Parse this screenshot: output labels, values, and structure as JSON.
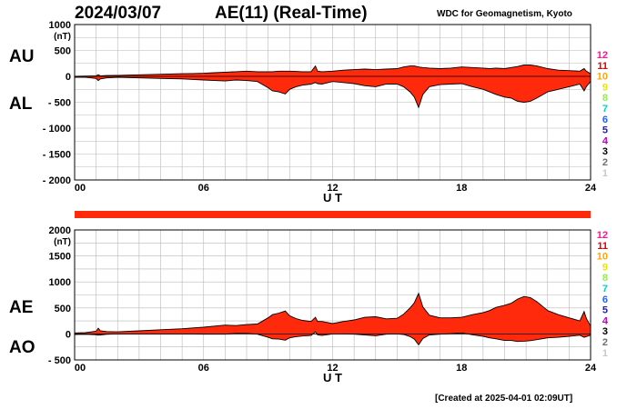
{
  "header": {
    "date": "2024/03/07",
    "title": "AE(11) (Real-Time)",
    "source": "WDC for Geomagnetism, Kyoto"
  },
  "footer": {
    "created": "[Created at 2025-04-01 02:09UT]"
  },
  "colors": {
    "fill": "#ff2a0c",
    "grid": "#b8b8b8",
    "station_scale": [
      "#ff1493",
      "#e00000",
      "#ffa500",
      "#e6e600",
      "#90ee4a",
      "#00d0d0",
      "#1e60ff",
      "#2020b0",
      "#c000c0",
      "#000000",
      "#707070",
      "#c8c8c8"
    ]
  },
  "station_scale": [
    "12",
    "11",
    "10",
    "9",
    "8",
    "7",
    "6",
    "5",
    "4",
    "3",
    "2",
    "1"
  ],
  "chart_data": [
    {
      "type": "area",
      "series": [
        {
          "name": "AU"
        },
        {
          "name": "AL"
        }
      ],
      "xlabel": "U T",
      "ylabel": "(nT)",
      "xlim": [
        0,
        24
      ],
      "ylim": [
        -2000,
        1000
      ],
      "x_ticks": [
        0,
        6,
        12,
        18,
        24
      ],
      "x_tick_labels": [
        "00",
        "06",
        "12",
        "18",
        "24"
      ],
      "y_ticks": [
        1000,
        500,
        0,
        -500,
        -1000,
        -1500,
        -2000
      ],
      "y_tick_labels": [
        "1000",
        "500",
        "0",
        "- 500",
        "- 1000",
        "- 1500",
        "- 2000"
      ],
      "grid": true,
      "x": [
        0,
        0.5,
        1,
        1.1,
        1.2,
        1.5,
        2,
        3,
        4,
        5,
        5.5,
        6,
        6.5,
        7,
        7.5,
        8,
        8.5,
        9,
        9.2,
        9.5,
        9.8,
        10,
        10.3,
        10.6,
        11,
        11.2,
        11.3,
        11.5,
        12,
        12.5,
        13,
        13.5,
        14,
        14.5,
        15,
        15.3,
        15.6,
        15.8,
        16,
        16.2,
        16.5,
        17,
        17.5,
        18,
        18.5,
        19,
        19.3,
        19.6,
        20,
        20.3,
        20.6,
        20.9,
        21.2,
        21.5,
        21.8,
        22,
        22.5,
        23,
        23.5,
        23.7,
        23.8,
        24
      ],
      "au": [
        0,
        5,
        10,
        30,
        10,
        15,
        20,
        30,
        40,
        50,
        55,
        60,
        70,
        80,
        90,
        100,
        90,
        90,
        90,
        100,
        100,
        100,
        95,
        90,
        90,
        200,
        100,
        90,
        100,
        120,
        130,
        140,
        130,
        140,
        150,
        180,
        200,
        200,
        180,
        170,
        160,
        150,
        160,
        180,
        170,
        160,
        150,
        160,
        150,
        170,
        190,
        220,
        220,
        200,
        170,
        150,
        120,
        110,
        100,
        150,
        100,
        50
      ],
      "al": [
        -20,
        -20,
        -40,
        -80,
        -50,
        -30,
        -20,
        -30,
        -40,
        -50,
        -60,
        -70,
        -80,
        -90,
        -70,
        -80,
        -100,
        -220,
        -280,
        -300,
        -340,
        -250,
        -200,
        -170,
        -150,
        -120,
        -140,
        -150,
        -100,
        -120,
        -140,
        -180,
        -200,
        -150,
        -150,
        -200,
        -300,
        -400,
        -600,
        -350,
        -200,
        -160,
        -150,
        -140,
        -200,
        -250,
        -300,
        -350,
        -400,
        -420,
        -480,
        -500,
        -480,
        -420,
        -350,
        -300,
        -250,
        -200,
        -150,
        -280,
        -200,
        -100
      ]
    },
    {
      "type": "area",
      "series": [
        {
          "name": "AE"
        },
        {
          "name": "AO"
        }
      ],
      "xlabel": "U T",
      "ylabel": "(nT)",
      "xlim": [
        0,
        24
      ],
      "ylim": [
        -500,
        2000
      ],
      "x_ticks": [
        0,
        6,
        12,
        18,
        24
      ],
      "x_tick_labels": [
        "00",
        "06",
        "12",
        "18",
        "24"
      ],
      "y_ticks": [
        2000,
        1500,
        1000,
        500,
        0,
        -500
      ],
      "y_tick_labels": [
        "2000",
        "1500",
        "1000",
        "500",
        "0",
        "- 500"
      ],
      "grid": true,
      "x": [
        0,
        0.5,
        1,
        1.1,
        1.2,
        1.5,
        2,
        3,
        4,
        5,
        5.5,
        6,
        6.5,
        7,
        7.5,
        8,
        8.5,
        9,
        9.2,
        9.5,
        9.8,
        10,
        10.3,
        10.6,
        11,
        11.2,
        11.3,
        11.5,
        12,
        12.5,
        13,
        13.5,
        14,
        14.5,
        15,
        15.3,
        15.6,
        15.8,
        16,
        16.2,
        16.5,
        17,
        17.5,
        18,
        18.5,
        19,
        19.3,
        19.6,
        20,
        20.3,
        20.6,
        20.9,
        21.2,
        21.5,
        21.8,
        22,
        22.5,
        23,
        23.5,
        23.7,
        23.8,
        24
      ],
      "ae": [
        20,
        25,
        50,
        110,
        60,
        45,
        40,
        60,
        80,
        100,
        115,
        130,
        150,
        170,
        160,
        180,
        190,
        310,
        370,
        400,
        440,
        350,
        295,
        260,
        240,
        320,
        240,
        240,
        200,
        240,
        270,
        320,
        330,
        290,
        300,
        380,
        500,
        600,
        780,
        520,
        360,
        310,
        310,
        320,
        370,
        410,
        450,
        510,
        550,
        590,
        670,
        720,
        700,
        620,
        520,
        450,
        370,
        310,
        250,
        430,
        300,
        150
      ],
      "ao": [
        -10,
        -7,
        -15,
        -25,
        -20,
        -7,
        0,
        0,
        0,
        0,
        -2,
        -5,
        -5,
        -5,
        10,
        10,
        -5,
        -65,
        -95,
        -100,
        -120,
        -75,
        -52,
        -40,
        -30,
        40,
        -20,
        -30,
        0,
        0,
        -5,
        -20,
        -35,
        -5,
        0,
        -10,
        -50,
        -100,
        -210,
        -90,
        -20,
        -5,
        5,
        20,
        -15,
        -45,
        -75,
        -95,
        -125,
        -125,
        -145,
        -140,
        -130,
        -110,
        -90,
        -75,
        -65,
        -45,
        -25,
        -65,
        -50,
        -25
      ]
    }
  ]
}
